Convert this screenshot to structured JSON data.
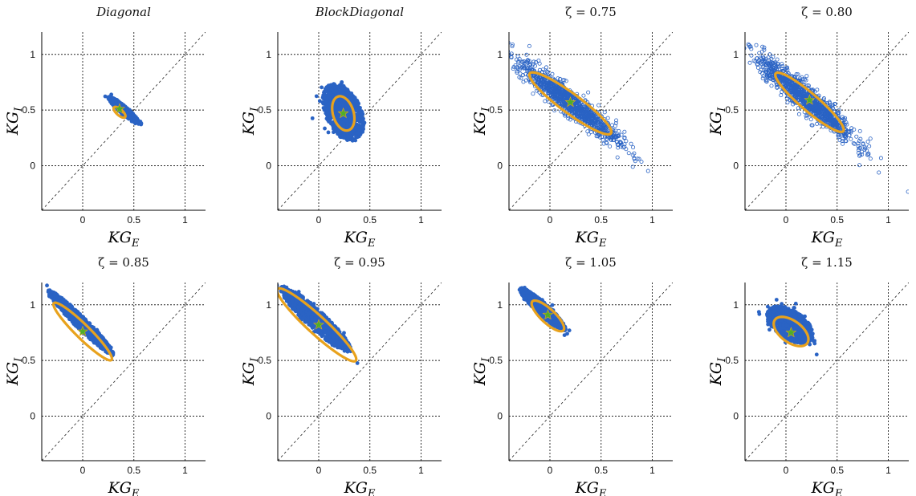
{
  "colors": {
    "scatter": "#2a63c4",
    "ellipse": "#e8a21d",
    "mean_star": "#4caf2a",
    "grid": "#222222"
  },
  "chart_data": [
    {
      "type": "scatter",
      "title": "Diagonal",
      "title_italic": true,
      "xlabel_main": "KG",
      "xlabel_sub": "E",
      "ylabel_main": "KG",
      "ylabel_sub": "I",
      "xlim": [
        -0.4,
        1.2
      ],
      "ylim": [
        -0.4,
        1.2
      ],
      "xticks": [
        "0",
        "0.5",
        "1"
      ],
      "yticks": [
        "0",
        "0.5",
        "1"
      ],
      "grid": true,
      "diagonal": "y = x",
      "cloud": {
        "cx": 0.4,
        "cy": 0.5,
        "a": 0.19,
        "b": 0.035,
        "angle": -38,
        "spread": "dense"
      },
      "ellipse": {
        "cx": 0.36,
        "cy": 0.48,
        "a": 0.07,
        "b": 0.028,
        "angle": -38
      },
      "mean": {
        "x": 0.36,
        "y": 0.51
      }
    },
    {
      "type": "scatter",
      "title": "BlockDiagonal",
      "title_italic": true,
      "xlabel_main": "KG",
      "xlabel_sub": "E",
      "ylabel_main": "KG",
      "ylabel_sub": "I",
      "xlim": [
        -0.4,
        1.2
      ],
      "ylim": [
        -0.4,
        1.2
      ],
      "xticks": [
        "0",
        "0.5",
        "1"
      ],
      "yticks": [
        "0",
        "0.5",
        "1"
      ],
      "grid": true,
      "diagonal": "y = x",
      "cloud": {
        "cx": 0.24,
        "cy": 0.48,
        "a": 0.28,
        "b": 0.17,
        "angle": -60,
        "spread": "dense"
      },
      "ellipse": {
        "cx": 0.24,
        "cy": 0.47,
        "a": 0.16,
        "b": 0.1,
        "angle": -70
      },
      "mean": {
        "x": 0.24,
        "y": 0.47
      }
    },
    {
      "type": "scatter",
      "title": "ζ = 0.75",
      "title_italic": false,
      "xlabel_main": "KG",
      "xlabel_sub": "E",
      "ylabel_main": "KG",
      "ylabel_sub": "I",
      "xlim": [
        -0.4,
        1.2
      ],
      "ylim": [
        -0.4,
        1.2
      ],
      "xticks": [
        "0",
        "0.5",
        "1"
      ],
      "yticks": [
        "0",
        "0.5",
        "1"
      ],
      "grid": true,
      "diagonal": "y = x",
      "cloud": {
        "cx": 0.18,
        "cy": 0.58,
        "a": 0.72,
        "b": 0.09,
        "angle": -36,
        "spread": "wide"
      },
      "ellipse": {
        "cx": 0.2,
        "cy": 0.56,
        "a": 0.48,
        "b": 0.09,
        "angle": -34
      },
      "mean": {
        "x": 0.2,
        "y": 0.57
      }
    },
    {
      "type": "scatter",
      "title": "ζ = 0.80",
      "title_italic": false,
      "xlabel_main": "KG",
      "xlabel_sub": "E",
      "ylabel_main": "KG",
      "ylabel_sub": "I",
      "xlim": [
        -0.4,
        1.2
      ],
      "ylim": [
        -0.4,
        1.2
      ],
      "xticks": [
        "0",
        "0.5",
        "1"
      ],
      "yticks": [
        "0",
        "0.5",
        "1"
      ],
      "grid": true,
      "diagonal": "y = x",
      "cloud": {
        "cx": 0.2,
        "cy": 0.6,
        "a": 0.72,
        "b": 0.09,
        "angle": -38,
        "spread": "wide"
      },
      "ellipse": {
        "cx": 0.23,
        "cy": 0.57,
        "a": 0.42,
        "b": 0.08,
        "angle": -38
      },
      "mean": {
        "x": 0.23,
        "y": 0.59
      }
    },
    {
      "type": "scatter",
      "title": "ζ = 0.85",
      "title_italic": false,
      "xlabel_main": "KG",
      "xlabel_sub": "E",
      "ylabel_main": "KG",
      "ylabel_sub": "I",
      "xlim": [
        -0.4,
        1.2
      ],
      "ylim": [
        -0.4,
        1.2
      ],
      "xticks": [
        "0",
        "0.5",
        "1"
      ],
      "yticks": [
        "0",
        "0.5",
        "1"
      ],
      "grid": true,
      "diagonal": "y = x",
      "cloud": {
        "cx": -0.02,
        "cy": 0.84,
        "a": 0.43,
        "b": 0.055,
        "angle": -42,
        "spread": "dense"
      },
      "ellipse": {
        "cx": 0.0,
        "cy": 0.76,
        "a": 0.38,
        "b": 0.065,
        "angle": -42
      },
      "mean": {
        "x": 0.0,
        "y": 0.76
      }
    },
    {
      "type": "scatter",
      "title": "ζ = 0.95",
      "title_italic": false,
      "xlabel_main": "KG",
      "xlabel_sub": "E",
      "ylabel_main": "KG",
      "ylabel_sub": "I",
      "xlim": [
        -0.4,
        1.2
      ],
      "ylim": [
        -0.4,
        1.2
      ],
      "xticks": [
        "0",
        "0.5",
        "1"
      ],
      "yticks": [
        "0",
        "0.5",
        "1"
      ],
      "grid": true,
      "diagonal": "y = x",
      "cloud": {
        "cx": -0.03,
        "cy": 0.87,
        "a": 0.45,
        "b": 0.085,
        "angle": -40,
        "spread": "dense"
      },
      "ellipse": {
        "cx": -0.02,
        "cy": 0.82,
        "a": 0.5,
        "b": 0.085,
        "angle": -40
      },
      "mean": {
        "x": 0.0,
        "y": 0.82
      }
    },
    {
      "type": "scatter",
      "title": "ζ = 1.05",
      "title_italic": false,
      "xlabel_main": "KG",
      "xlabel_sub": "E",
      "ylabel_main": "KG",
      "ylabel_sub": "I",
      "xlim": [
        -0.4,
        1.2
      ],
      "ylim": [
        -0.4,
        1.2
      ],
      "xticks": [
        "0",
        "0.5",
        "1"
      ],
      "yticks": [
        "0",
        "0.5",
        "1"
      ],
      "grid": true,
      "diagonal": "y = x",
      "cloud": {
        "cx": -0.07,
        "cy": 0.96,
        "a": 0.29,
        "b": 0.055,
        "angle": -40,
        "spread": "dense"
      },
      "ellipse": {
        "cx": -0.02,
        "cy": 0.9,
        "a": 0.2,
        "b": 0.065,
        "angle": -40
      },
      "mean": {
        "x": -0.02,
        "y": 0.91
      }
    },
    {
      "type": "scatter",
      "title": "ζ = 1.15",
      "title_italic": false,
      "xlabel_main": "KG",
      "xlabel_sub": "E",
      "ylabel_main": "KG",
      "ylabel_sub": "I",
      "xlim": [
        -0.4,
        1.2
      ],
      "ylim": [
        -0.4,
        1.2
      ],
      "xticks": [
        "0",
        "0.5",
        "1"
      ],
      "yticks": [
        "0",
        "0.5",
        "1"
      ],
      "grid": true,
      "diagonal": "y = x",
      "cloud": {
        "cx": 0.04,
        "cy": 0.82,
        "a": 0.25,
        "b": 0.13,
        "angle": -30,
        "spread": "dense"
      },
      "ellipse": {
        "cx": 0.05,
        "cy": 0.76,
        "a": 0.19,
        "b": 0.1,
        "angle": -32
      },
      "mean": {
        "x": 0.05,
        "y": 0.75
      }
    }
  ]
}
